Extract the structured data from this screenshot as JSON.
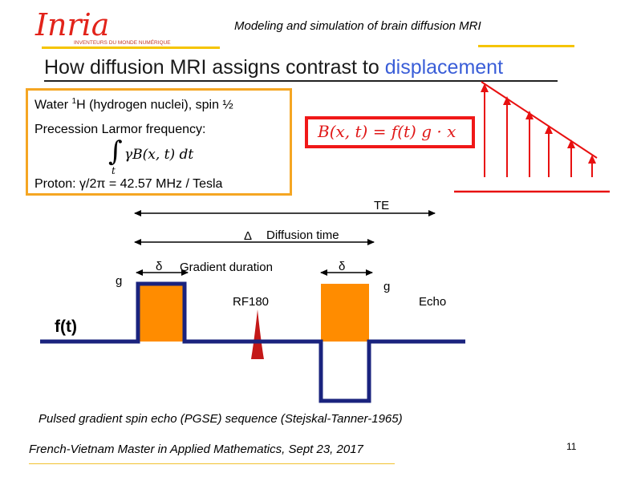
{
  "logo": {
    "text": "Inria",
    "tagline": "INVENTEURS DU MONDE NUMÉRIQUE",
    "color": "#e2231a"
  },
  "header": {
    "title": "Modeling and simulation of brain diffusion MRI"
  },
  "slide": {
    "title_prefix": "How diffusion MRI assigns contrast to ",
    "title_highlight": "displacement"
  },
  "infobox": {
    "line1_a": "Water ",
    "line1_sup": "1",
    "line1_b": "H (hydrogen nuclei), spin ½",
    "line2": "Precession Larmor frequency:",
    "integral_expr": "γB(x, t) dt",
    "integral_sub": "t",
    "line3": "Proton: γ/2π = 42.57 MHz / Tesla",
    "border_color": "#f5a623"
  },
  "equation": {
    "text": "B(x, t) = f(t) g · x",
    "border_color": "#f01818"
  },
  "sequence": {
    "te_label": "TE",
    "delta_cap_symbol": "Δ",
    "delta_cap_label": "Diffusion time",
    "delta_small_symbol": "δ",
    "gradient_duration_label": "Gradient duration",
    "delta_small_symbol_2": "δ",
    "g_label_left": "g",
    "g_label_right": "g",
    "rf180_label": "RF180",
    "echo_label": "Echo",
    "ft_label": "f(t)",
    "pulse_color": "#ff8c00",
    "waveform_color": "#1a237e",
    "rf_color": "#c41818",
    "arrow_color": "#e81010"
  },
  "caption": "Pulsed gradient spin echo (PGSE) sequence (Stejskal-Tanner-1965)",
  "footer": {
    "text": "French-Vietnam Master in Applied Mathematics, Sept 23, 2017",
    "page": "11"
  }
}
